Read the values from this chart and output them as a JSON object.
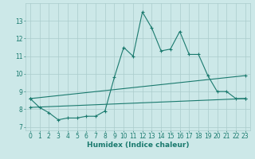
{
  "xlabel": "Humidex (Indice chaleur)",
  "x": [
    0,
    1,
    2,
    3,
    4,
    5,
    6,
    7,
    8,
    9,
    10,
    11,
    12,
    13,
    14,
    15,
    16,
    17,
    18,
    19,
    20,
    21,
    22,
    23
  ],
  "line1": [
    8.6,
    8.1,
    7.8,
    7.4,
    7.5,
    7.5,
    7.6,
    7.6,
    7.9,
    9.8,
    11.5,
    11.0,
    13.5,
    12.6,
    11.3,
    11.4,
    12.4,
    11.1,
    11.1,
    9.9,
    9.0,
    9.0,
    8.6,
    8.6
  ],
  "line2_x": [
    0,
    23
  ],
  "line2": [
    8.6,
    9.9
  ],
  "line3_x": [
    0,
    23
  ],
  "line3": [
    8.1,
    8.6
  ],
  "line_color": "#1a7a6e",
  "bg_color": "#cce8e8",
  "grid_color": "#aacccc",
  "ylim": [
    6.8,
    14.0
  ],
  "xlim": [
    -0.5,
    23.5
  ],
  "yticks": [
    7,
    8,
    9,
    10,
    11,
    12,
    13
  ],
  "xticks": [
    0,
    1,
    2,
    3,
    4,
    5,
    6,
    7,
    8,
    9,
    10,
    11,
    12,
    13,
    14,
    15,
    16,
    17,
    18,
    19,
    20,
    21,
    22,
    23
  ],
  "marker": "+",
  "markersize": 3,
  "linewidth": 0.8,
  "tick_fontsize": 5.5,
  "label_fontsize": 6.5,
  "title_fontsize": 7
}
